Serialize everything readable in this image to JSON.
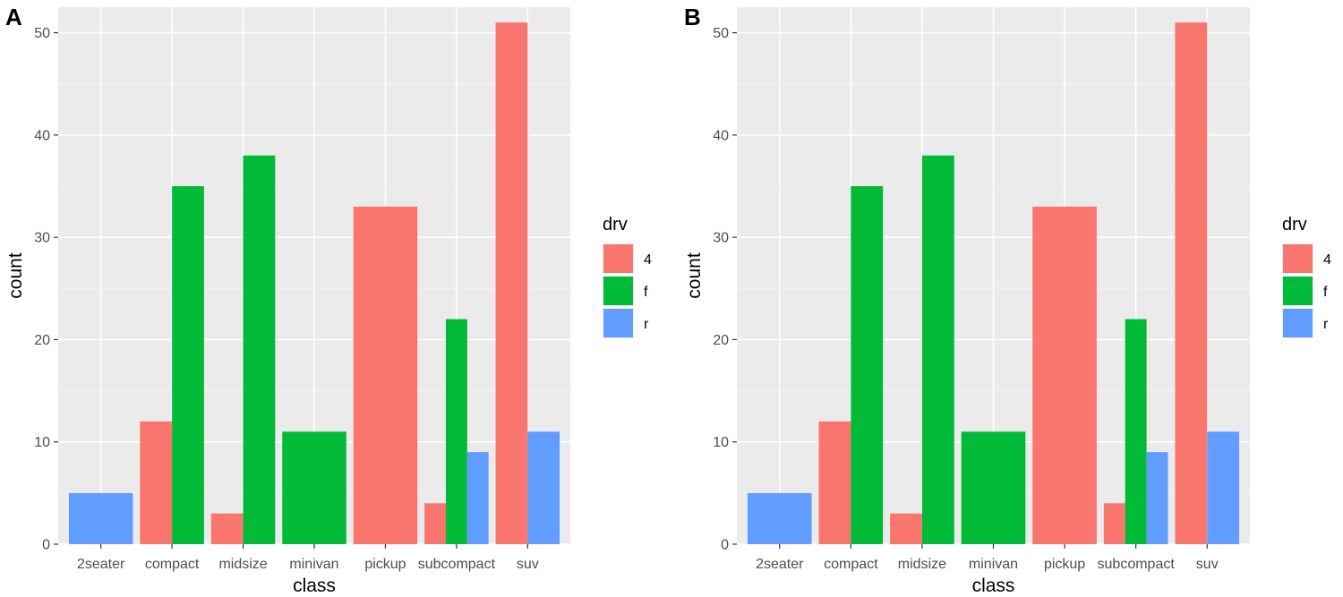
{
  "chart_data": [
    {
      "type": "bar",
      "tag": "A",
      "xlabel": "class",
      "ylabel": "count",
      "ylim": [
        0,
        52.5
      ],
      "yticks": [
        0,
        10,
        20,
        30,
        40,
        50
      ],
      "categories": [
        "2seater",
        "compact",
        "midsize",
        "minivan",
        "pickup",
        "subcompact",
        "suv"
      ],
      "legend": {
        "title": "drv",
        "entries": [
          "4",
          "f",
          "r"
        ],
        "position": "right"
      },
      "groups": [
        [
          {
            "drv": "r",
            "value": 5
          }
        ],
        [
          {
            "drv": "4",
            "value": 12
          },
          {
            "drv": "f",
            "value": 35
          }
        ],
        [
          {
            "drv": "4",
            "value": 3
          },
          {
            "drv": "f",
            "value": 38
          }
        ],
        [
          {
            "drv": "f",
            "value": 11
          }
        ],
        [
          {
            "drv": "4",
            "value": 33
          }
        ],
        [
          {
            "drv": "4",
            "value": 4
          },
          {
            "drv": "f",
            "value": 22
          },
          {
            "drv": "r",
            "value": 9
          }
        ],
        [
          {
            "drv": "4",
            "value": 51
          },
          {
            "drv": "r",
            "value": 11
          }
        ]
      ]
    },
    {
      "type": "bar",
      "tag": "B",
      "xlabel": "class",
      "ylabel": "count",
      "ylim": [
        0,
        52.5
      ],
      "yticks": [
        0,
        10,
        20,
        30,
        40,
        50
      ],
      "categories": [
        "2seater",
        "compact",
        "midsize",
        "minivan",
        "pickup",
        "subcompact",
        "suv"
      ],
      "legend": {
        "title": "drv",
        "entries": [
          "4",
          "f",
          "r"
        ],
        "position": "right"
      },
      "groups": [
        [
          {
            "drv": "r",
            "value": 5
          }
        ],
        [
          {
            "drv": "4",
            "value": 12
          },
          {
            "drv": "f",
            "value": 35
          }
        ],
        [
          {
            "drv": "4",
            "value": 3
          },
          {
            "drv": "f",
            "value": 38
          }
        ],
        [
          {
            "drv": "f",
            "value": 11
          }
        ],
        [
          {
            "drv": "4",
            "value": 33
          }
        ],
        [
          {
            "drv": "4",
            "value": 4
          },
          {
            "drv": "f",
            "value": 22
          },
          {
            "drv": "r",
            "value": 9
          }
        ],
        [
          {
            "drv": "4",
            "value": 51
          },
          {
            "drv": "r",
            "value": 11
          }
        ]
      ]
    }
  ],
  "colors": {
    "4": "#f8766d",
    "f": "#00ba38",
    "r": "#619cff"
  }
}
